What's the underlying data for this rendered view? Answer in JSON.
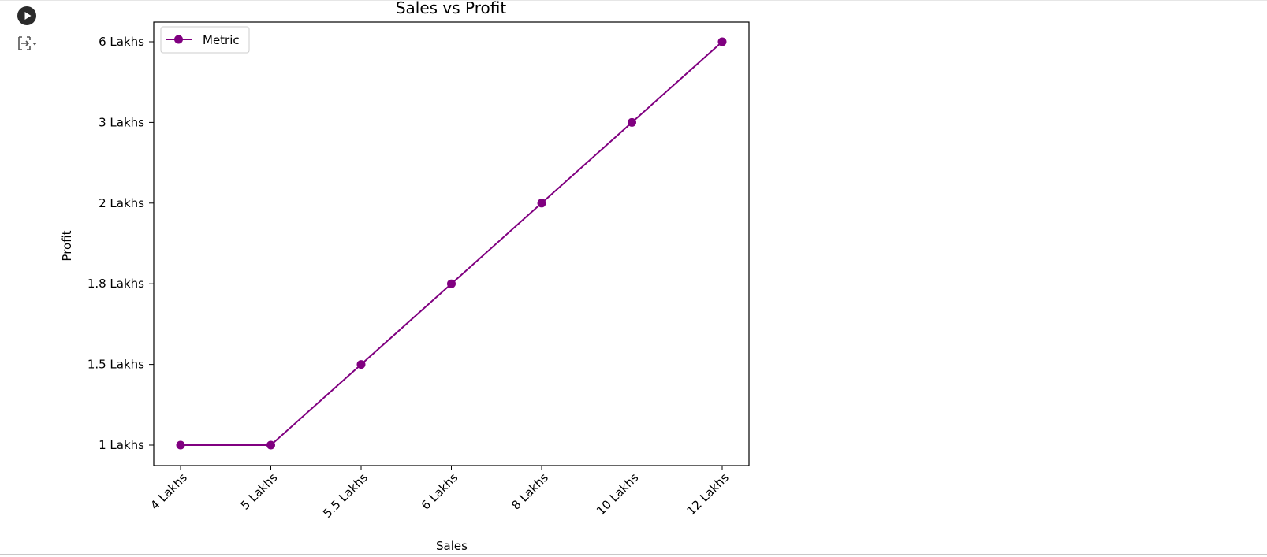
{
  "cell": {
    "run_icon": "play-circle-icon",
    "output_toggle_icon": "output-collapse-icon"
  },
  "chart_data": {
    "type": "line",
    "title": "Sales vs Profit",
    "xlabel": "Sales",
    "ylabel": "Profit",
    "categories": [
      "4 Lakhs",
      "5 Lakhs",
      "5.5 Lakhs",
      "6 Lakhs",
      "8 Lakhs",
      "10 Lakhs",
      "12 Lakhs"
    ],
    "y_categories": [
      "1 Lakhs",
      "1.5 Lakhs",
      "1.8 Lakhs",
      "2 Lakhs",
      "3 Lakhs",
      "6 Lakhs"
    ],
    "series": [
      {
        "name": "Metric",
        "values": [
          "1 Lakhs",
          "1 Lakhs",
          "1.5 Lakhs",
          "1.8 Lakhs",
          "2 Lakhs",
          "3 Lakhs",
          "6 Lakhs"
        ],
        "color": "#800080",
        "marker": "circle"
      }
    ],
    "grid": false,
    "legend": "top-left"
  }
}
